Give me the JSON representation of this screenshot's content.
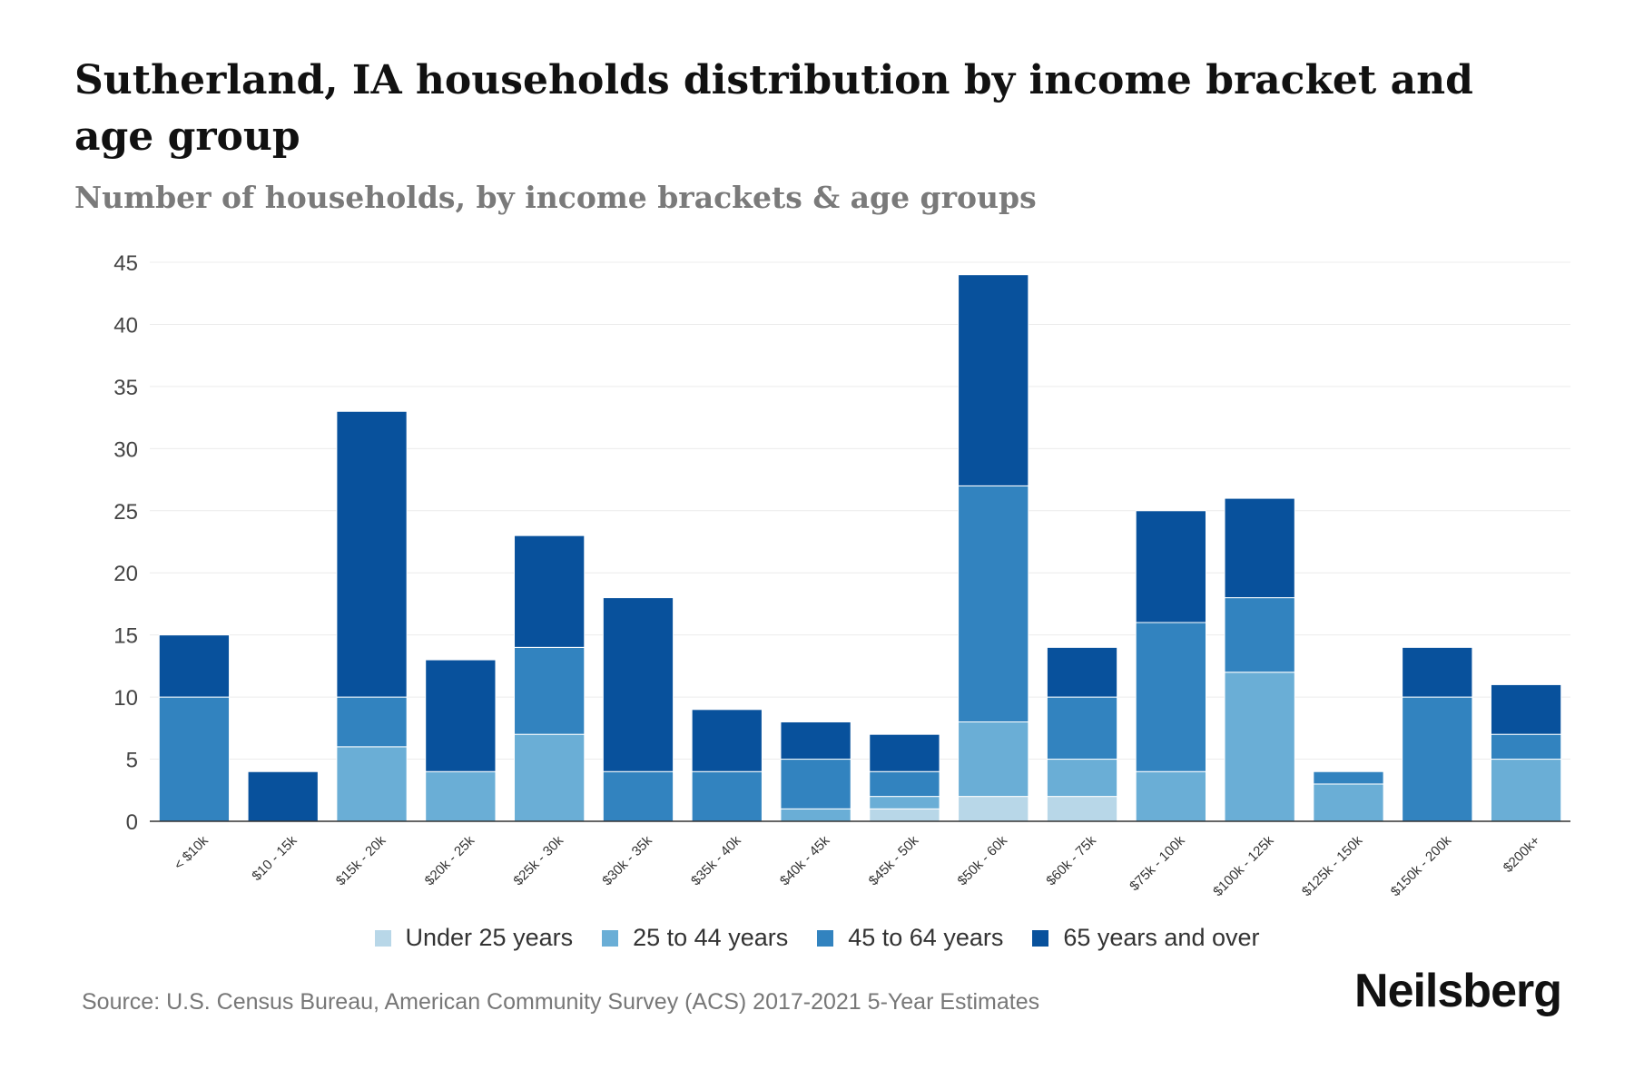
{
  "chart_data": {
    "type": "bar",
    "stacked": true,
    "title": "Sutherland, IA households distribution by income bracket and age group",
    "subtitle": "Number of households, by income brackets & age groups",
    "xlabel": "",
    "ylabel": "",
    "ylim": [
      0,
      45
    ],
    "yticks": [
      0,
      5,
      10,
      15,
      20,
      25,
      30,
      35,
      40,
      45
    ],
    "grid": true,
    "legend_position": "bottom",
    "categories": [
      "< $10k",
      "$10 - 15k",
      "$15k - 20k",
      "$20k - 25k",
      "$25k - 30k",
      "$30k - 35k",
      "$35k - 40k",
      "$40k - 45k",
      "$45k - 50k",
      "$50k - 60k",
      "$60k - 75k",
      "$75k - 100k",
      "$100k - 125k",
      "$125k - 150k",
      "$150k - 200k",
      "$200k+"
    ],
    "series": [
      {
        "name": "Under 25 years",
        "color": "#b8d7e8",
        "values": [
          0,
          0,
          0,
          0,
          0,
          0,
          0,
          0,
          1,
          2,
          2,
          0,
          0,
          0,
          0,
          0
        ]
      },
      {
        "name": "25 to 44 years",
        "color": "#6aaed6",
        "values": [
          0,
          0,
          6,
          4,
          7,
          0,
          0,
          1,
          1,
          6,
          3,
          4,
          12,
          3,
          0,
          5
        ]
      },
      {
        "name": "45 to 64 years",
        "color": "#3283bf",
        "values": [
          10,
          0,
          4,
          0,
          7,
          4,
          4,
          4,
          2,
          19,
          5,
          12,
          6,
          1,
          10,
          2
        ]
      },
      {
        "name": "65 years and over",
        "color": "#08519c",
        "values": [
          5,
          4,
          23,
          9,
          9,
          14,
          5,
          3,
          3,
          17,
          4,
          9,
          8,
          0,
          4,
          4
        ]
      }
    ]
  },
  "source": "Source: U.S. Census Bureau, American Community Survey (ACS) 2017-2021 5-Year Estimates",
  "brand": "Neilsberg"
}
